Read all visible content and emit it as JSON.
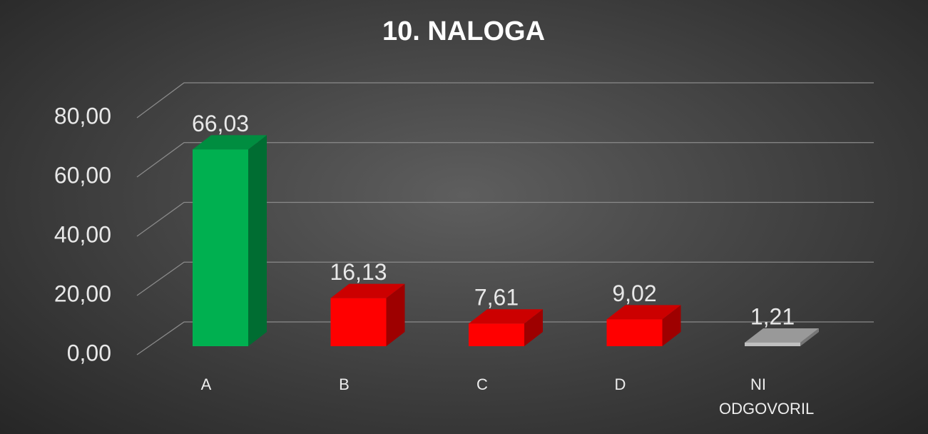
{
  "chart_data": {
    "type": "bar3d",
    "title": "10. NALOGA",
    "categories": [
      "A",
      "B",
      "C",
      "D",
      "NI ODGOVORIL"
    ],
    "values": [
      66.03,
      16.13,
      7.61,
      9.02,
      1.21
    ],
    "value_labels": [
      "66,03",
      "16,13",
      "7,61",
      "9,02",
      "1,21"
    ],
    "colors": [
      "#00b050",
      "#ff0000",
      "#ff0000",
      "#ff0000",
      "#bfbfbf"
    ],
    "ylim": [
      0,
      80
    ],
    "yticks": [
      {
        "value": 0,
        "label": "0,00"
      },
      {
        "value": 20,
        "label": "20,00"
      },
      {
        "value": 40,
        "label": "40,00"
      },
      {
        "value": 60,
        "label": "60,00"
      },
      {
        "value": 80,
        "label": "80,00"
      }
    ],
    "grid": true
  }
}
